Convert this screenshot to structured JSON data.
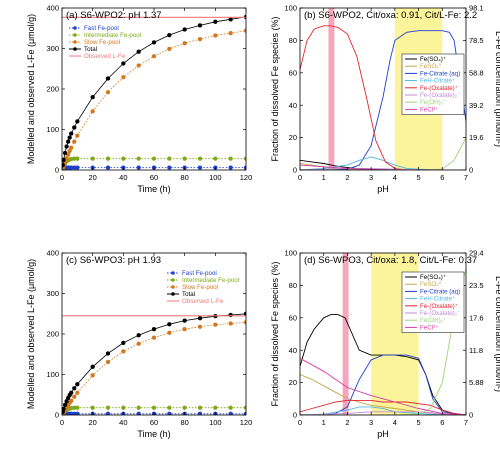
{
  "chart_data": [
    {
      "type": "scatter",
      "panel": "(a) S6-WPO2: pH 1.37",
      "xlabel": "Time (h)",
      "ylabel": "Modelled and observed L-Fe (μmol/g)",
      "xlim": [
        0,
        120
      ],
      "ylim": [
        0,
        400
      ],
      "xticks": [
        0,
        20,
        40,
        60,
        80,
        100,
        120
      ],
      "yticks": [
        0,
        100,
        200,
        300,
        400
      ],
      "legend": "top-left",
      "series": [
        {
          "name": "Fast Fe-pool",
          "color": "#1f3fcc",
          "style": "dotted-markers",
          "x": [
            0.5,
            1,
            2,
            3,
            4,
            5,
            6,
            8,
            10,
            20,
            30,
            40,
            50,
            60,
            70,
            80,
            90,
            100,
            110,
            120
          ],
          "y": [
            3,
            5,
            6,
            6,
            6,
            6,
            6,
            6,
            6,
            6,
            6,
            6,
            6,
            6,
            6,
            6,
            6,
            6,
            6,
            6
          ]
        },
        {
          "name": "Intermediate Fe-pool",
          "color": "#7fa81a",
          "style": "dotted-markers",
          "x": [
            0.5,
            1,
            2,
            3,
            4,
            5,
            6,
            8,
            10,
            20,
            30,
            40,
            50,
            60,
            70,
            80,
            90,
            100,
            110,
            120
          ],
          "y": [
            4,
            9,
            16,
            21,
            24,
            26,
            27,
            28,
            28,
            28,
            28,
            28,
            28,
            28,
            28,
            28,
            28,
            28,
            28,
            28
          ]
        },
        {
          "name": "Slow Fe-pool",
          "color": "#d4781c",
          "style": "dotted-markers",
          "x": [
            0.5,
            1,
            2,
            3,
            4,
            5,
            6,
            8,
            10,
            20,
            30,
            40,
            50,
            60,
            70,
            80,
            90,
            100,
            110,
            120
          ],
          "y": [
            5,
            10,
            20,
            29,
            38,
            47,
            55,
            70,
            85,
            145,
            192,
            229,
            258,
            281,
            299,
            313,
            323,
            332,
            338,
            344
          ]
        },
        {
          "name": "Total",
          "color": "#000000",
          "style": "solid-markers",
          "x": [
            0.5,
            1,
            2,
            3,
            4,
            5,
            6,
            8,
            10,
            20,
            30,
            40,
            50,
            60,
            70,
            80,
            90,
            100,
            110,
            120
          ],
          "y": [
            12,
            25,
            42,
            58,
            70,
            80,
            90,
            105,
            120,
            180,
            226,
            263,
            292,
            315,
            333,
            347,
            357,
            366,
            372,
            378
          ]
        },
        {
          "name": "Observed L-Fe",
          "color": "#f07a7a",
          "style": "line",
          "x": [
            0,
            120
          ],
          "y": [
            377,
            377
          ]
        }
      ]
    },
    {
      "type": "line",
      "panel": "(b) S6-WPO2, Cit/oxa: 0.91, Cit/L-Fe: 2.2",
      "xlabel": "pH",
      "ylabel": "Fraction of dissolved Fe species (%)",
      "ylabel_right": "L-Fe concentration (pmol/m²)",
      "xlim": [
        0,
        7
      ],
      "ylim": [
        0,
        100
      ],
      "xticks": [
        0,
        1,
        2,
        3,
        4,
        5,
        6,
        7
      ],
      "yticks": [
        0,
        20,
        40,
        60,
        80,
        100
      ],
      "yticks_right": [
        "0",
        "19.6",
        "39.2",
        "58.8",
        "78.5",
        "98.1"
      ],
      "observed_ph_band": [
        1.2,
        1.45
      ],
      "highlight_ph_range": [
        4.0,
        6.0
      ],
      "legend": "center-right",
      "series": [
        {
          "name": "Fe(SO₄)⁺",
          "color": "#000000",
          "x": [
            0,
            0.5,
            1,
            1.5,
            2,
            2.5,
            3,
            3.5,
            4,
            4.5,
            5,
            5.5,
            6,
            6.5,
            7
          ],
          "y": [
            6,
            5,
            4,
            2.5,
            1.5,
            0.8,
            0.4,
            0.2,
            0.1,
            0,
            0,
            0,
            0,
            0,
            0
          ]
        },
        {
          "name": "FeSO₄⁰",
          "color": "#c7a84e",
          "x": [
            0,
            0.5,
            1,
            1.5,
            2,
            3,
            4,
            5,
            6,
            7
          ],
          "y": [
            4,
            3,
            2,
            1,
            0.5,
            0.1,
            0,
            0,
            0,
            0
          ]
        },
        {
          "name": "Fe-Citrate (aq)",
          "color": "#1f3fcc",
          "x": [
            0,
            1,
            2,
            2.5,
            3,
            3.5,
            3.8,
            4,
            4.5,
            5,
            5.5,
            6,
            6.3,
            6.5,
            6.8,
            7
          ],
          "y": [
            0,
            0,
            0.5,
            3,
            15,
            45,
            68,
            80,
            85,
            86,
            86,
            86,
            85,
            80,
            50,
            30
          ]
        },
        {
          "name": "FeH-Citrate⁺",
          "color": "#52b6e0",
          "x": [
            0,
            1,
            2,
            2.5,
            3,
            3.5,
            4,
            4.5,
            5,
            6,
            7
          ],
          "y": [
            0,
            1,
            3,
            6,
            8,
            6,
            3,
            1,
            0.5,
            0,
            0
          ]
        },
        {
          "name": "Fe-(Oxalate)⁺",
          "color": "#e0252f",
          "x": [
            0,
            0.3,
            0.6,
            1,
            1.3,
            1.6,
            2,
            2.4,
            2.8,
            3.2,
            3.6,
            4,
            4.5,
            5
          ],
          "y": [
            62,
            80,
            87,
            89,
            89,
            88,
            84,
            70,
            45,
            18,
            5,
            1,
            0,
            0
          ]
        },
        {
          "name": "Fe-(Oxalate)₂⁻",
          "color": "#c08bd6",
          "x": [
            0,
            1,
            2,
            3,
            4,
            5,
            6,
            7
          ],
          "y": [
            0,
            0.5,
            1,
            1,
            0.5,
            0,
            0,
            0
          ]
        },
        {
          "name": "Fe(OH)₂⁺",
          "color": "#9fd37a",
          "x": [
            0,
            1,
            2,
            3,
            4,
            5,
            6,
            6.5,
            7
          ],
          "y": [
            0,
            0,
            0,
            0,
            0,
            0,
            0.5,
            6,
            20
          ]
        },
        {
          "name": "FeCl²⁺",
          "color": "#d73ba2",
          "x": [
            0,
            0.5,
            1,
            1.5,
            2,
            3,
            4,
            5,
            6,
            7
          ],
          "y": [
            3,
            2.5,
            2,
            1.5,
            1,
            0.3,
            0,
            0,
            0,
            0
          ]
        }
      ]
    },
    {
      "type": "scatter",
      "panel": "(c) S6-WPO3: pH 1.93",
      "xlabel": "Time (h)",
      "ylabel": "Modelled and observed L-Fe (μmol/g)",
      "xlim": [
        0,
        120
      ],
      "ylim": [
        0,
        400
      ],
      "xticks": [
        0,
        20,
        40,
        60,
        80,
        100,
        120
      ],
      "yticks": [
        0,
        100,
        200,
        300,
        400
      ],
      "legend": "top-right",
      "series": [
        {
          "name": "Fast Fe-pool",
          "color": "#1f3fcc",
          "style": "dotted-markers",
          "x": [
            0.5,
            1,
            2,
            3,
            4,
            5,
            6,
            8,
            10,
            20,
            30,
            40,
            50,
            60,
            70,
            80,
            90,
            100,
            110,
            120
          ],
          "y": [
            2,
            3,
            3,
            3,
            3,
            3,
            3,
            3,
            3,
            3,
            3,
            3,
            3,
            3,
            3,
            3,
            3,
            3,
            3,
            3
          ]
        },
        {
          "name": "Intermediate Fe-pool",
          "color": "#7fa81a",
          "style": "dotted-markers",
          "x": [
            0.5,
            1,
            2,
            3,
            4,
            5,
            6,
            8,
            10,
            20,
            30,
            40,
            50,
            60,
            70,
            80,
            90,
            100,
            110,
            120
          ],
          "y": [
            3,
            6,
            10,
            13,
            15,
            16,
            17,
            18,
            18,
            18,
            18,
            18,
            18,
            18,
            18,
            18,
            18,
            18,
            18,
            18
          ]
        },
        {
          "name": "Slow Fe-pool",
          "color": "#d4781c",
          "style": "dotted-markers",
          "x": [
            0.5,
            1,
            2,
            3,
            4,
            5,
            6,
            8,
            10,
            20,
            30,
            40,
            50,
            60,
            70,
            80,
            90,
            100,
            110,
            120
          ],
          "y": [
            3,
            6,
            12,
            18,
            24,
            30,
            35,
            45,
            55,
            98,
            131,
            157,
            176,
            191,
            203,
            212,
            218,
            223,
            226,
            229
          ]
        },
        {
          "name": "Total",
          "color": "#000000",
          "style": "solid-markers",
          "x": [
            0.5,
            1,
            2,
            3,
            4,
            5,
            6,
            8,
            10,
            20,
            30,
            40,
            50,
            60,
            70,
            80,
            90,
            100,
            110,
            120
          ],
          "y": [
            8,
            15,
            25,
            34,
            42,
            49,
            55,
            66,
            76,
            119,
            152,
            178,
            197,
            212,
            224,
            233,
            239,
            244,
            247,
            250
          ]
        },
        {
          "name": "Observed L-Fe",
          "color": "#f07a7a",
          "style": "line",
          "x": [
            0,
            120
          ],
          "y": [
            245,
            245
          ]
        }
      ]
    },
    {
      "type": "line",
      "panel": "(d) S6-WPO3, Cit/oxa: 1.8, Cit/L-Fe: 0.37",
      "xlabel": "pH",
      "ylabel": "Fraction of dissolved Fe species (%)",
      "ylabel_right": "L-Fe concentration (pmol/m²)",
      "xlim": [
        0,
        7
      ],
      "ylim": [
        0,
        100
      ],
      "xticks": [
        0,
        1,
        2,
        3,
        4,
        5,
        6,
        7
      ],
      "yticks": [
        0,
        20,
        40,
        60,
        80,
        100
      ],
      "yticks_right": [
        "0",
        "5.88",
        "11.8",
        "17.6",
        "23.5",
        "29.4"
      ],
      "observed_ph_band": [
        1.8,
        2.05
      ],
      "highlight_ph_range": [
        3.0,
        5.0
      ],
      "legend": "top-right",
      "series": [
        {
          "name": "Fe(SO₄)⁺",
          "color": "#000000",
          "x": [
            0,
            0.3,
            0.6,
            1,
            1.3,
            1.6,
            1.9,
            2.2,
            2.5,
            3,
            3.5,
            4,
            4.5,
            5,
            5.3,
            5.6,
            6,
            6.5,
            7
          ],
          "y": [
            30,
            45,
            53,
            60,
            62,
            62,
            60,
            50,
            40,
            37,
            37,
            37,
            36,
            34,
            25,
            12,
            3,
            0.5,
            0
          ]
        },
        {
          "name": "FeSO₄⁰",
          "color": "#c7a84e",
          "x": [
            0,
            0.5,
            1,
            1.5,
            2,
            3,
            4,
            5,
            6,
            7
          ],
          "y": [
            25,
            22,
            18,
            14,
            10,
            6,
            4,
            2,
            0.5,
            0
          ]
        },
        {
          "name": "Fe-Citrate (aq)",
          "color": "#1f3fcc",
          "x": [
            0,
            1,
            1.5,
            2,
            2.5,
            3,
            3.5,
            4,
            4.5,
            5,
            5.3,
            5.6,
            6,
            7
          ],
          "y": [
            0,
            0,
            1,
            5,
            22,
            34,
            37,
            37,
            37,
            35,
            25,
            10,
            2,
            0
          ]
        },
        {
          "name": "FeH-Citrate⁺",
          "color": "#52b6e0",
          "x": [
            0,
            1,
            2,
            2.5,
            3,
            3.5,
            4,
            5,
            6,
            7
          ],
          "y": [
            0,
            0.5,
            3,
            5,
            5,
            4,
            2,
            1,
            0,
            0
          ]
        },
        {
          "name": "Fe-(Oxalate)⁺",
          "color": "#e0252f",
          "x": [
            0,
            0.5,
            1,
            1.5,
            2,
            2.5,
            3,
            3.5,
            4,
            4.5,
            5,
            5.5,
            6,
            6.5,
            7
          ],
          "y": [
            2,
            4,
            6,
            8,
            9,
            9,
            9,
            8,
            8,
            8,
            7,
            6,
            3,
            1,
            0
          ]
        },
        {
          "name": "Fe-(Oxalate)₂⁻",
          "color": "#c08bd6",
          "x": [
            0,
            1,
            2,
            3,
            4,
            5,
            5.5,
            6,
            7
          ],
          "y": [
            0,
            0.5,
            1,
            2,
            2,
            2,
            1.5,
            0.5,
            0
          ]
        },
        {
          "name": "Fe(OH)₂⁺",
          "color": "#9fd37a",
          "x": [
            0,
            4,
            5,
            5.5,
            6,
            6.3,
            6.6,
            7
          ],
          "y": [
            0,
            0,
            0.5,
            4,
            20,
            45,
            70,
            90
          ]
        },
        {
          "name": "FeCl²⁺",
          "color": "#d73ba2",
          "x": [
            0,
            0.5,
            1,
            1.5,
            2,
            3,
            4,
            5,
            6,
            7
          ],
          "y": [
            35,
            31,
            27,
            22,
            17,
            12,
            8,
            4,
            1,
            0
          ]
        }
      ]
    }
  ]
}
